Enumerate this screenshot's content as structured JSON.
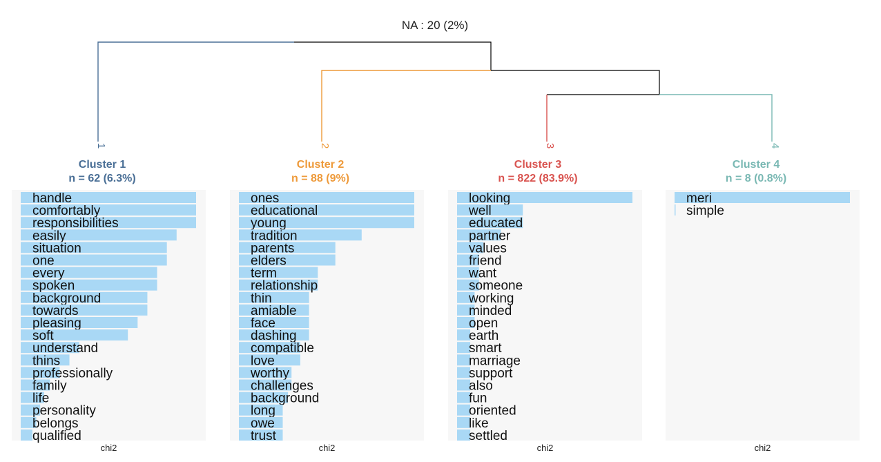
{
  "chart_data": {
    "type": "bar",
    "na_label": "NA : 20 (2%)",
    "clusters": [
      {
        "id": "1",
        "title": "Cluster 1",
        "subtitle": "n = 62 (6.3%)",
        "color": "#4a6f96",
        "axis_label": "chi2",
        "words": [
          "handle",
          "comfortably",
          "responsibilities",
          "easily",
          "situation",
          "one",
          "every",
          "spoken",
          "background",
          "towards",
          "pleasing",
          "soft",
          "understand",
          "thins",
          "professionally",
          "family",
          "life",
          "personality",
          "belongs",
          "qualified"
        ],
        "values": [
          9.0,
          9.0,
          9.0,
          8.0,
          7.5,
          7.5,
          7.0,
          7.0,
          6.5,
          6.5,
          6.0,
          5.5,
          3.0,
          2.5,
          2.0,
          1.5,
          1.2,
          1.0,
          0.8,
          0.6
        ]
      },
      {
        "id": "2",
        "title": "Cluster 2",
        "subtitle": "n = 88 (9%)",
        "color": "#ee9a3a",
        "axis_label": "chi2",
        "words": [
          "ones",
          "educational",
          "young",
          "tradition",
          "parents",
          "elders",
          "term",
          "relationship",
          "thin",
          "amiable",
          "face",
          "dashing",
          "compatible",
          "love",
          "worthy",
          "challenges",
          "background",
          "long",
          "owe",
          "trust"
        ],
        "values": [
          10.0,
          10.0,
          10.0,
          7.0,
          5.5,
          5.5,
          4.5,
          4.5,
          4.0,
          4.0,
          4.0,
          4.0,
          3.5,
          3.5,
          3.0,
          3.0,
          2.8,
          2.5,
          2.5,
          2.5
        ]
      },
      {
        "id": "3",
        "title": "Cluster 3",
        "subtitle": "n = 822 (83.9%)",
        "color": "#d9534f",
        "axis_label": "chi2",
        "words": [
          "looking",
          "well",
          "educated",
          "partner",
          "values",
          "friend",
          "want",
          "someone",
          "working",
          "minded",
          "open",
          "earth",
          "smart",
          "marriage",
          "support",
          "also",
          "fun",
          "oriented",
          "like",
          "settled"
        ],
        "values": [
          4.0,
          1.5,
          1.5,
          1.0,
          0.6,
          0.5,
          0.5,
          0.5,
          0.4,
          0.4,
          0.4,
          0.3,
          0.3,
          0.3,
          0.3,
          0.3,
          0.3,
          0.3,
          0.3,
          0.3
        ]
      },
      {
        "id": "4",
        "title": "Cluster 4",
        "subtitle": "n = 8 (0.8%)",
        "color": "#79b8b3",
        "axis_label": "chi2",
        "words": [
          "meri",
          "simple"
        ],
        "values": [
          100,
          0.5
        ]
      }
    ],
    "bar_color": "#a9d8f5",
    "panel_color": "#f7f7f7",
    "dendrogram_line_color": "#000000"
  }
}
